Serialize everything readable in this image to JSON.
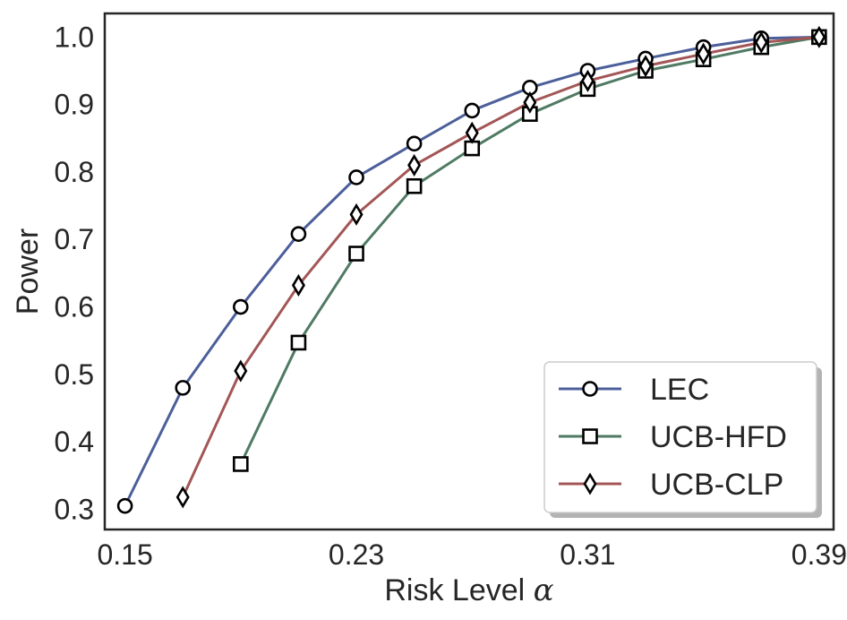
{
  "chart_data": {
    "type": "line",
    "title": "",
    "xlabel": "Risk Level",
    "xlabel_symbol": "α",
    "ylabel": "Power",
    "xlim": [
      0.143,
      0.395
    ],
    "ylim": [
      0.27,
      1.035
    ],
    "xticks": [
      0.15,
      0.23,
      0.31,
      0.39
    ],
    "xtick_labels": [
      "0.15",
      "0.23",
      "0.31",
      "0.39"
    ],
    "yticks": [
      0.3,
      0.4,
      0.5,
      0.6,
      0.7,
      0.8,
      0.9,
      1.0
    ],
    "ytick_labels": [
      "0.3",
      "0.4",
      "0.5",
      "0.6",
      "0.7",
      "0.8",
      "0.9",
      "1.0"
    ],
    "grid": false,
    "legend_position": "lower-right",
    "series": [
      {
        "name": "LEC",
        "color": "#4c5f9a",
        "marker": "circle",
        "x": [
          0.15,
          0.17,
          0.19,
          0.21,
          0.23,
          0.25,
          0.27,
          0.29,
          0.31,
          0.33,
          0.35,
          0.37,
          0.39
        ],
        "y": [
          0.305,
          0.48,
          0.6,
          0.708,
          0.792,
          0.842,
          0.891,
          0.925,
          0.95,
          0.968,
          0.985,
          0.998,
          1.0
        ]
      },
      {
        "name": "UCB-HFD",
        "color": "#4f7a63",
        "marker": "square",
        "x": [
          0.19,
          0.21,
          0.23,
          0.25,
          0.27,
          0.29,
          0.31,
          0.33,
          0.35,
          0.37,
          0.39
        ],
        "y": [
          0.367,
          0.547,
          0.679,
          0.779,
          0.835,
          0.886,
          0.923,
          0.95,
          0.967,
          0.985,
          1.0
        ]
      },
      {
        "name": "UCB-CLP",
        "color": "#a35656",
        "marker": "diamond",
        "x": [
          0.17,
          0.19,
          0.21,
          0.23,
          0.25,
          0.27,
          0.29,
          0.31,
          0.33,
          0.35,
          0.37,
          0.39
        ],
        "y": [
          0.318,
          0.505,
          0.632,
          0.737,
          0.81,
          0.858,
          0.903,
          0.935,
          0.957,
          0.975,
          0.992,
          1.0
        ]
      }
    ]
  }
}
